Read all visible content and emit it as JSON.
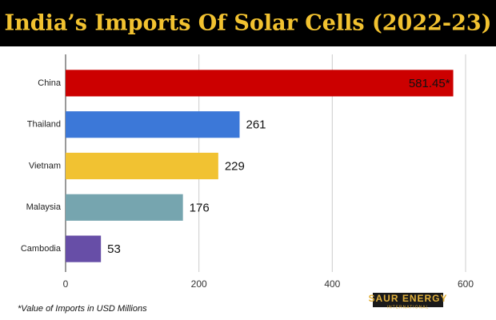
{
  "chart_data": {
    "type": "hbar",
    "title": "India’s Imports Of Solar Cells (2022-23)",
    "categories": [
      "China",
      "Thailand",
      "Vietnam",
      "Malaysia",
      "Cambodia"
    ],
    "values": [
      581.45,
      261,
      229,
      176,
      53
    ],
    "value_labels": [
      "581.45*",
      "261",
      "229",
      "176",
      "53"
    ],
    "colors": [
      "#cc0000",
      "#3c78d8",
      "#f1c232",
      "#76a5af",
      "#674ea7"
    ],
    "xlim": [
      0,
      600
    ],
    "xticks": [
      0,
      200,
      400,
      600
    ],
    "grid": true,
    "footnote": "*Value of Imports in USD Millions",
    "logo": {
      "name": "SAUR ENERGY",
      "tagline": "INTERNATIONAL"
    }
  }
}
